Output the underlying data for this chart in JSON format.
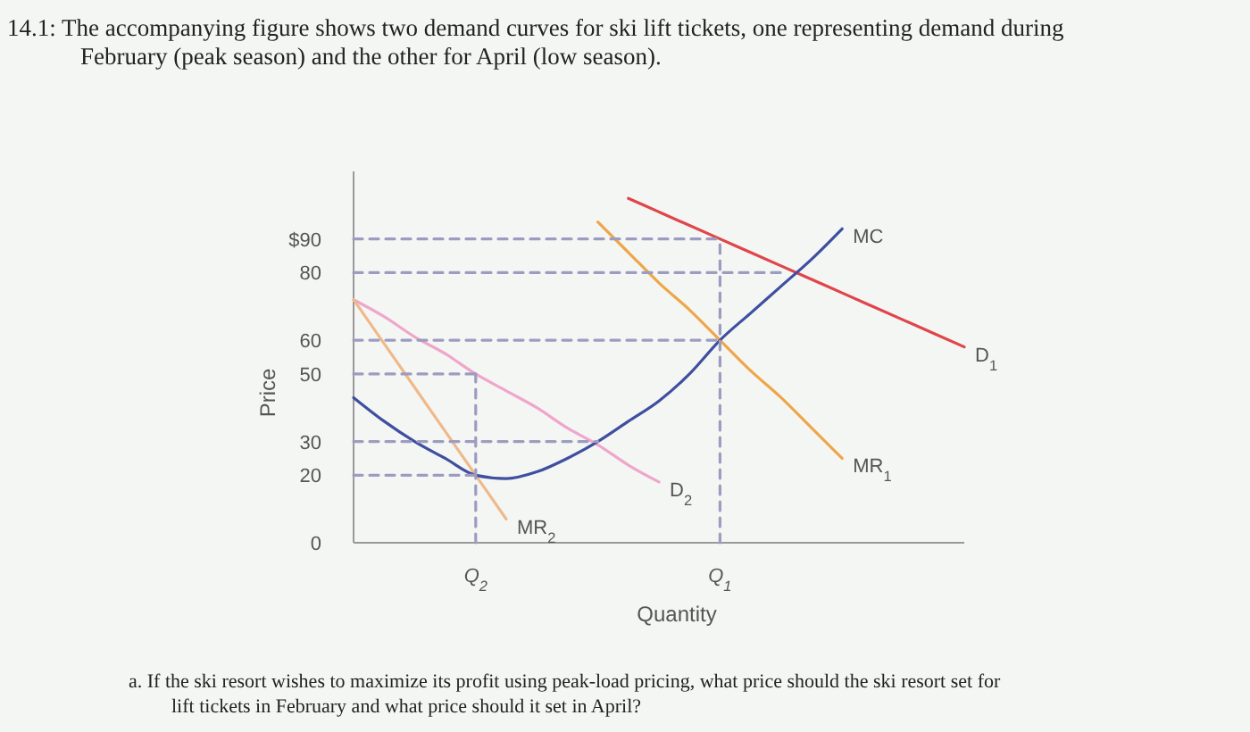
{
  "chart_data": {
    "type": "line",
    "title": "14.1: The accompanying figure shows two demand curves for ski lift tickets, one representing demand during February (peak season) and the other for April (low season).",
    "xlabel": "Quantity",
    "ylabel": "Price",
    "ylim": [
      0,
      110
    ],
    "categories": [
      null,
      null,
      null,
      null,
      "Q$_{2}$",
      null,
      null,
      null,
      null,
      null,
      null,
      null,
      "Q$_{1}$",
      null,
      null,
      null,
      null,
      null,
      null,
      null,
      null
    ],
    "yticks": [
      0,
      20,
      30,
      50,
      60,
      80,
      {
        "value": 90,
        "label": "$90"
      }
    ],
    "line_style": "solid",
    "series": [
      {
        "name": "D$_{1}$",
        "color": "#e0454a",
        "values": [
          null,
          null,
          null,
          null,
          null,
          null,
          null,
          null,
          null,
          102,
          98,
          94,
          90,
          86,
          82,
          78,
          74,
          70,
          66,
          62,
          58
        ]
      },
      {
        "name": "MR$_{1}$",
        "color": "#eea64a",
        "values": [
          null,
          null,
          null,
          null,
          null,
          null,
          null,
          null,
          95,
          86,
          77,
          69,
          60,
          51,
          43,
          34,
          25,
          null,
          null,
          null,
          null
        ]
      },
      {
        "name": "D$_{2}$",
        "color": "#f0a6cc",
        "values": [
          72,
          67,
          61,
          56,
          50,
          45,
          40,
          34,
          29,
          23,
          18,
          null,
          null,
          null,
          null,
          null,
          null,
          null,
          null,
          null,
          null
        ]
      },
      {
        "name": "MR$_{2}$",
        "color": "#efb98a",
        "values": [
          72,
          59,
          46,
          33,
          20,
          7,
          null,
          null,
          null,
          null,
          null,
          null,
          null,
          null,
          null,
          null,
          null,
          null,
          null,
          null,
          null
        ]
      },
      {
        "name": "MC",
        "color": "#3f4fa0",
        "values": [
          43,
          36,
          30,
          25,
          20,
          19,
          21,
          25,
          30,
          36,
          42,
          50,
          60,
          68,
          76,
          84,
          93,
          null,
          null,
          null,
          null
        ]
      },
      {
        "color": "#9c9cc0",
        "line_style": "dashed",
        "values": [
          90,
          90,
          90,
          90,
          90,
          90,
          90,
          90,
          90,
          90,
          90,
          90,
          90,
          null,
          null,
          null,
          null,
          null,
          null,
          null,
          null
        ]
      },
      {
        "color": "#9c9cc0",
        "line_style": "dashed",
        "values": [
          80,
          80,
          80,
          80,
          80,
          80,
          80,
          80,
          80,
          80,
          80,
          80,
          80,
          80,
          80,
          null,
          null,
          null,
          null,
          null,
          null
        ]
      },
      {
        "color": "#9c9cc0",
        "line_style": "dashed",
        "values": [
          60,
          60,
          60,
          60,
          60,
          60,
          60,
          60,
          60,
          60,
          60,
          60,
          60,
          null,
          null,
          null,
          null,
          null,
          null,
          null,
          null
        ]
      },
      {
        "color": "#9c9cc0",
        "line_style": "dashed",
        "values": [
          50,
          50,
          50,
          50,
          50,
          null,
          null,
          null,
          null,
          null,
          null,
          null,
          null,
          null,
          null,
          null,
          null,
          null,
          null,
          null,
          null
        ]
      },
      {
        "color": "#9c9cc0",
        "line_style": "dashed",
        "values": [
          30,
          30,
          30,
          30,
          30,
          30,
          30,
          30,
          30,
          null,
          null,
          null,
          null,
          null,
          null,
          null,
          null,
          null,
          null,
          null,
          null
        ]
      },
      {
        "color": "#9c9cc0",
        "line_style": "dashed",
        "values": [
          20,
          20,
          20,
          20,
          20,
          null,
          null,
          null,
          null,
          null,
          null,
          null,
          null,
          null,
          null,
          null,
          null,
          null,
          null,
          null,
          null
        ]
      },
      {
        "color": "#9c9cc0",
        "line_style": "dashed",
        "x": [
          "Q$_{2}$",
          "Q$_{2}$"
        ],
        "values": [
          0,
          50
        ]
      },
      {
        "color": "#9c9cc0",
        "line_style": "dashed",
        "x": [
          "Q$_{1}$",
          "Q$_{1}$"
        ],
        "values": [
          0,
          90
        ]
      }
    ],
    "annotations": [
      "a.  If the ski resort wishes to maximize its profit using peak-load pricing, what price should the ski resort set for lift tickets in February and what price should it set in April?"
    ]
  }
}
